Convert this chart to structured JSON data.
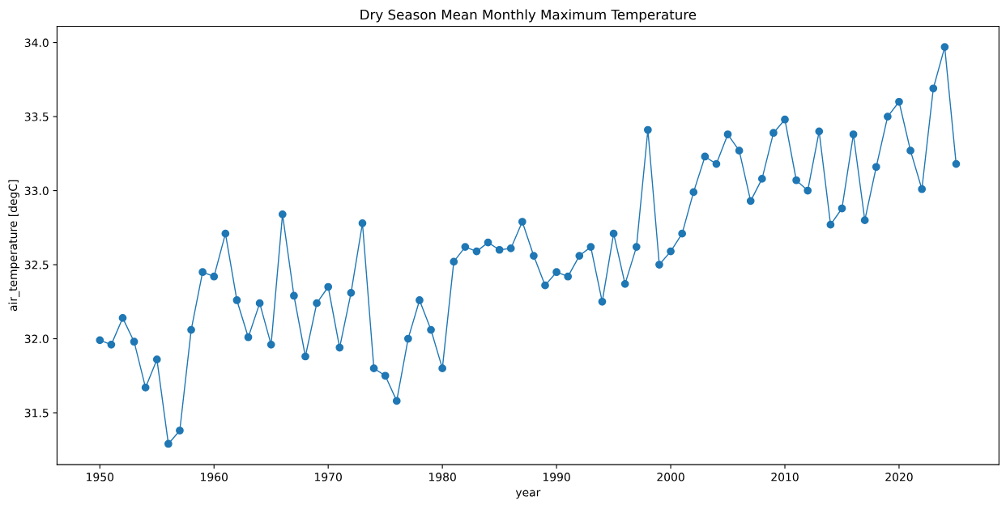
{
  "chart_data": {
    "type": "line",
    "title": "Dry Season Mean Monthly Maximum Temperature",
    "xlabel": "year",
    "ylabel": "air_temperature [degC]",
    "x": [
      1950,
      1951,
      1952,
      1953,
      1954,
      1955,
      1956,
      1957,
      1958,
      1959,
      1960,
      1961,
      1962,
      1963,
      1964,
      1965,
      1966,
      1967,
      1968,
      1969,
      1970,
      1971,
      1972,
      1973,
      1974,
      1975,
      1976,
      1977,
      1978,
      1979,
      1980,
      1981,
      1982,
      1983,
      1984,
      1985,
      1986,
      1987,
      1988,
      1989,
      1990,
      1991,
      1992,
      1993,
      1994,
      1995,
      1996,
      1997,
      1998,
      1999,
      2000,
      2001,
      2002,
      2003,
      2004,
      2005,
      2006,
      2007,
      2008,
      2009,
      2010,
      2011,
      2012,
      2013,
      2014,
      2015,
      2016,
      2017,
      2018,
      2019,
      2020,
      2021,
      2022,
      2023,
      2024,
      2025
    ],
    "series": [
      {
        "color": "#1f77b4",
        "values": [
          31.99,
          31.96,
          32.14,
          31.98,
          31.67,
          31.86,
          31.29,
          31.38,
          32.06,
          32.45,
          32.42,
          32.71,
          32.26,
          32.01,
          32.24,
          31.96,
          32.84,
          32.29,
          31.88,
          32.24,
          32.35,
          31.94,
          32.31,
          32.78,
          31.8,
          31.75,
          31.58,
          32.0,
          32.26,
          32.06,
          31.8,
          32.52,
          32.62,
          32.59,
          32.65,
          32.6,
          32.61,
          32.79,
          32.56,
          32.36,
          32.45,
          32.42,
          32.56,
          32.62,
          32.25,
          32.71,
          32.37,
          32.62,
          33.41,
          32.5,
          32.59,
          32.71,
          32.99,
          33.23,
          33.18,
          33.38,
          33.27,
          32.93,
          33.08,
          33.39,
          33.48,
          33.07,
          33.0,
          33.4,
          32.77,
          32.88,
          33.38,
          32.8,
          33.16,
          33.5,
          33.6,
          33.27,
          33.01,
          33.69,
          33.97,
          33.18
        ]
      }
    ],
    "xlim": [
      1946.25,
      2028.75
    ],
    "xticks": [
      1950,
      1960,
      1970,
      1980,
      1990,
      2000,
      2010,
      2020
    ],
    "ylim": [
      31.15,
      34.11
    ],
    "yticks": [
      {
        "value": 31.5,
        "label": "31.5"
      },
      {
        "value": 32,
        "label": "32.0"
      },
      {
        "value": 32.5,
        "label": "32.5"
      },
      {
        "value": 33,
        "label": "33.0"
      },
      {
        "value": 33.5,
        "label": "33.5"
      },
      {
        "value": 34,
        "label": "34.0"
      }
    ],
    "marker": "circle",
    "line_style": "solid",
    "grid": false
  }
}
